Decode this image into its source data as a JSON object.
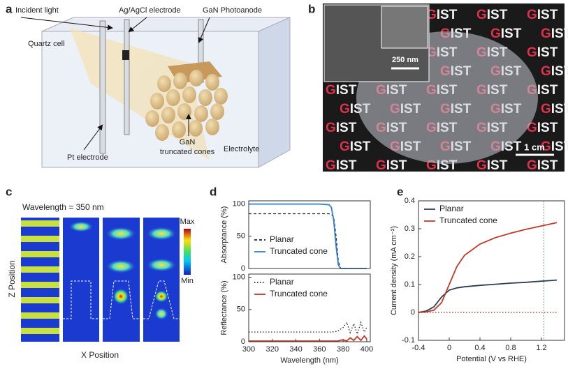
{
  "panels": {
    "a": {
      "label": "a",
      "incident_light": "Incident light",
      "ref_electrode": "Ag/AgCl electrode",
      "photoanode": "GaN Photoanode",
      "cell": "Quartz cell",
      "counter": "Pt electrode",
      "cones_1": "GaN",
      "cones_2": "truncated cones",
      "electrolyte": "Electrolyte"
    },
    "b": {
      "label": "b",
      "pattern_text": [
        "G",
        "IST"
      ],
      "inset_scale": "250 nm",
      "scale": "1 cm"
    },
    "c": {
      "label": "c",
      "wavelength": "Wavelength = 350 nm",
      "max": "Max",
      "min": "Min",
      "ylabel": "Z Position",
      "xlabel": "X Position"
    }
  },
  "chart_data": [
    {
      "type": "line",
      "label": "d",
      "ylabel": "Absorptance (%)",
      "x": [
        300,
        360,
        368,
        370,
        372,
        374,
        376,
        378,
        400
      ],
      "xlim": [
        300,
        403
      ],
      "ylim": [
        0,
        105
      ],
      "yticks": [
        0,
        50,
        100
      ],
      "legend": "lower left",
      "series": [
        {
          "name": "Planar",
          "color": "#222222",
          "dash": "dashed",
          "values": [
            85,
            85,
            85,
            84,
            80,
            50,
            10,
            0,
            0
          ]
        },
        {
          "name": "Truncated cone",
          "color": "#2f80d0",
          "dash": "solid",
          "values": [
            100,
            100,
            99,
            95,
            75,
            35,
            5,
            0,
            0
          ]
        }
      ]
    },
    {
      "type": "line",
      "ylabel": "Reflectance (%)",
      "xlabel": "Wavelength (nm)",
      "x": [
        300,
        370,
        375,
        380,
        383,
        386,
        389,
        392,
        395,
        398,
        400
      ],
      "xlim": [
        300,
        403
      ],
      "xticks": [
        300,
        320,
        340,
        360,
        380,
        400
      ],
      "ylim": [
        0,
        105
      ],
      "yticks": [
        0,
        50,
        100
      ],
      "legend": "upper left",
      "series": [
        {
          "name": "Planar",
          "color": "#222222",
          "dash": "dotted",
          "values": [
            15,
            15,
            16,
            22,
            30,
            14,
            28,
            12,
            30,
            15,
            22
          ]
        },
        {
          "name": "Truncated cone",
          "color": "#c0392b",
          "dash": "solid",
          "values": [
            1,
            1,
            1,
            3,
            1,
            6,
            2,
            8,
            2,
            9,
            4
          ]
        }
      ]
    },
    {
      "type": "line",
      "label": "e",
      "ylabel": "Current density (mA cm⁻²)",
      "xlabel": "Potential (V vs RHE)",
      "x": [
        -0.4,
        -0.3,
        -0.2,
        -0.1,
        0,
        0.1,
        0.2,
        0.4,
        0.6,
        0.8,
        1.0,
        1.2,
        1.4
      ],
      "xlim": [
        -0.4,
        1.5
      ],
      "xticks": [
        -0.4,
        0,
        0.4,
        0.8,
        1.2
      ],
      "ylim": [
        -0.1,
        0.4
      ],
      "yticks": [
        -0.1,
        0,
        0.1,
        0.2,
        0.3,
        0.4
      ],
      "legend": "upper left",
      "reference_x": 1.23,
      "series": [
        {
          "name": "Planar",
          "color": "#2c3e50",
          "dash": "solid",
          "values": [
            0,
            0.005,
            0.02,
            0.055,
            0.08,
            0.088,
            0.092,
            0.097,
            0.101,
            0.105,
            0.108,
            0.112,
            0.116
          ]
        },
        {
          "name": "Truncated cone",
          "color": "#c0392b",
          "dash": "solid",
          "values": [
            0,
            0.002,
            0.008,
            0.035,
            0.1,
            0.165,
            0.205,
            0.245,
            0.268,
            0.284,
            0.298,
            0.31,
            0.322
          ]
        },
        {
          "color": "#8b2a2a",
          "dash": "dotted",
          "x": [
            -0.4,
            1.4
          ],
          "values": [
            0,
            0
          ]
        }
      ]
    }
  ]
}
